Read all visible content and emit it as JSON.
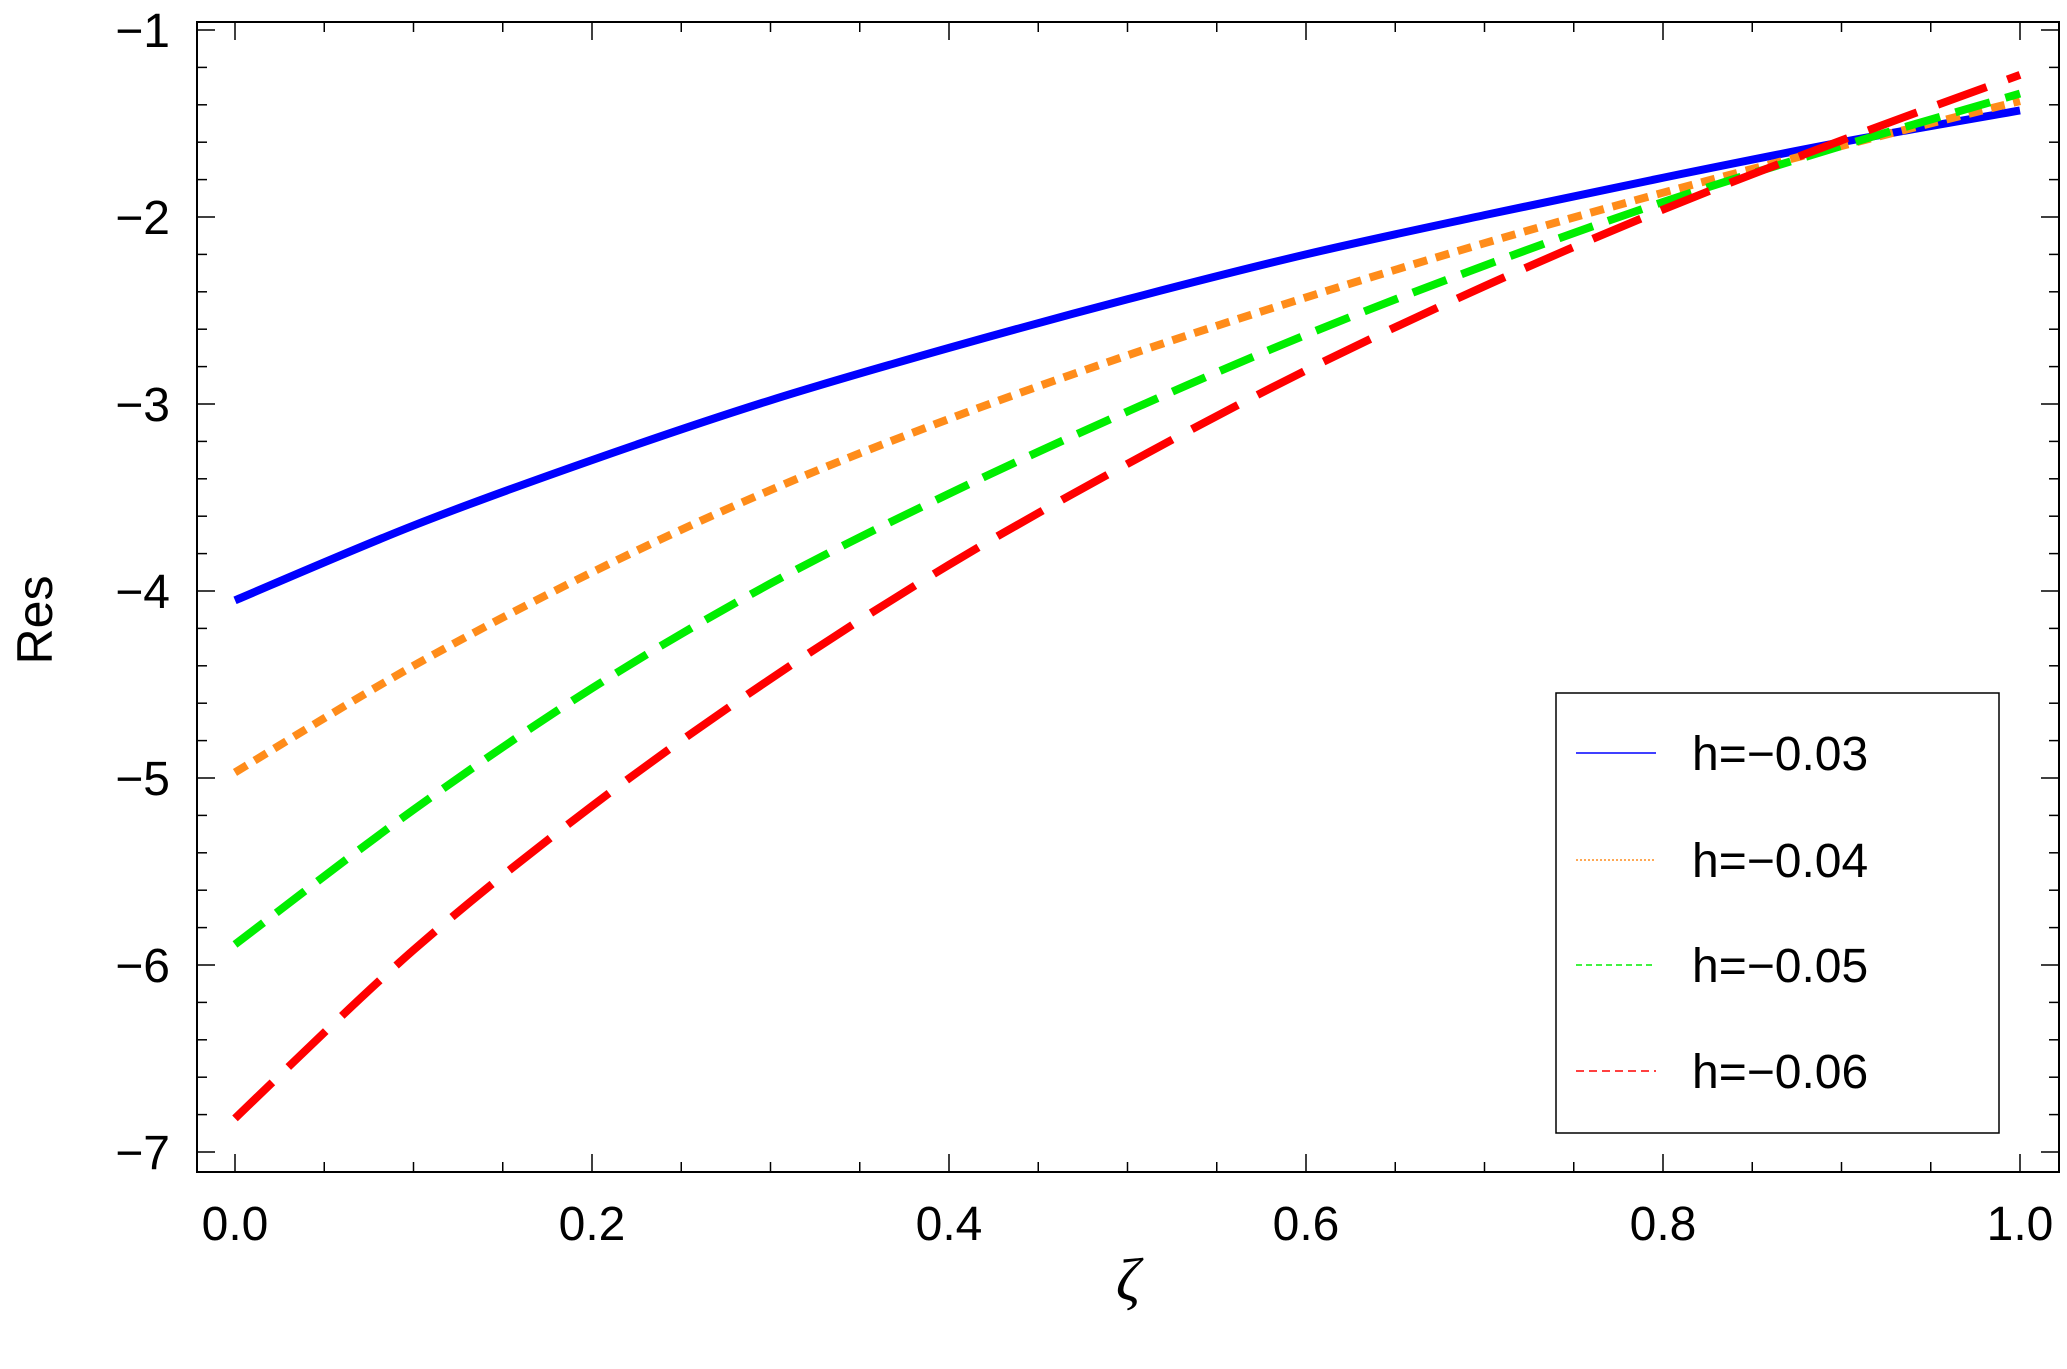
{
  "chart_data": {
    "type": "line",
    "xlabel": "ζ",
    "ylabel": "Res",
    "xlim": [
      0,
      1
    ],
    "ylim": [
      -7,
      -1
    ],
    "x_ticks": [
      0.0,
      0.2,
      0.4,
      0.6,
      0.8,
      1.0
    ],
    "x_tick_labels": [
      "0.0",
      "0.2",
      "0.4",
      "0.6",
      "0.8",
      "1.0"
    ],
    "y_ticks": [
      -7,
      -6,
      -5,
      -4,
      -3,
      -2,
      -1
    ],
    "y_tick_labels": [
      "−7",
      "−6",
      "−5",
      "−4",
      "−3",
      "−2",
      "−1"
    ],
    "grid": false,
    "legend_position": "bottom-right",
    "x": [
      0.0,
      0.1,
      0.2,
      0.3,
      0.4,
      0.5,
      0.6,
      0.7,
      0.8,
      0.9,
      1.0
    ],
    "series": [
      {
        "name": "h=−0.03",
        "color": "#0000ff",
        "style": "solid",
        "values": [
          -4.05,
          -3.65,
          -3.3,
          -2.98,
          -2.7,
          -2.44,
          -2.2,
          -1.99,
          -1.79,
          -1.6,
          -1.43
        ]
      },
      {
        "name": "h=−0.04",
        "color": "#ff8c1a",
        "style": "dotted",
        "values": [
          -4.97,
          -4.4,
          -3.9,
          -3.46,
          -3.08,
          -2.74,
          -2.43,
          -2.14,
          -1.87,
          -1.62,
          -1.38
        ]
      },
      {
        "name": "h=−0.05",
        "color": "#00ee00",
        "style": "dashed",
        "values": [
          -5.89,
          -5.17,
          -4.52,
          -3.96,
          -3.48,
          -3.04,
          -2.63,
          -2.26,
          -1.92,
          -1.62,
          -1.34
        ]
      },
      {
        "name": "h=−0.06",
        "color": "#ff0000",
        "style": "longdashed",
        "values": [
          -6.82,
          -5.92,
          -5.15,
          -4.47,
          -3.86,
          -3.32,
          -2.82,
          -2.37,
          -1.96,
          -1.59,
          -1.24
        ]
      }
    ]
  }
}
